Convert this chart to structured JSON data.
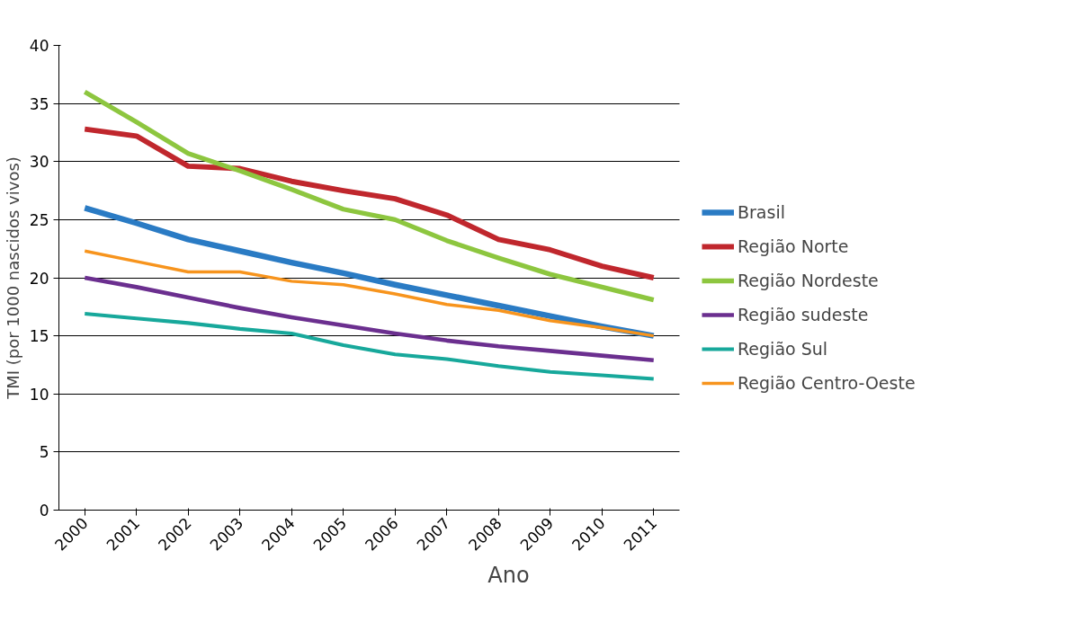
{
  "chart_data": {
    "type": "line",
    "xlabel": "Ano",
    "ylabel": "TMI (por 1000 nascidos vivos)",
    "categories": [
      "2000",
      "2001",
      "2002",
      "2003",
      "2004",
      "2005",
      "2006",
      "2007",
      "2008",
      "2009",
      "2010",
      "2011"
    ],
    "ylim": [
      0,
      40
    ],
    "yticks": [
      0,
      5,
      10,
      15,
      20,
      25,
      30,
      35,
      40
    ],
    "grid": "y",
    "legend": "right",
    "marker": "none",
    "line_style": "solid",
    "series": [
      {
        "name": "Brasil",
        "color": "#2a7bc4",
        "values": [
          26.0,
          24.7,
          23.3,
          22.3,
          21.3,
          20.4,
          19.4,
          18.5,
          17.6,
          16.7,
          15.8,
          15.0
        ]
      },
      {
        "name": "Região Norte",
        "color": "#c0272d",
        "values": [
          32.8,
          32.2,
          29.6,
          29.4,
          28.3,
          27.5,
          26.8,
          25.4,
          23.3,
          22.4,
          21.0,
          20.0
        ]
      },
      {
        "name": "Região Nordeste",
        "color": "#8dc63f",
        "values": [
          36.0,
          33.4,
          30.7,
          29.2,
          27.6,
          25.9,
          25.0,
          23.2,
          21.7,
          20.3,
          19.2,
          18.1
        ]
      },
      {
        "name": "Região sudeste",
        "color": "#6b2f8f",
        "values": [
          20.0,
          19.2,
          18.3,
          17.4,
          16.6,
          15.9,
          15.2,
          14.6,
          14.1,
          13.7,
          13.3,
          12.9
        ]
      },
      {
        "name": "Região Sul",
        "color": "#17a89b",
        "values": [
          16.9,
          16.5,
          16.1,
          15.6,
          15.2,
          14.2,
          13.4,
          13.0,
          12.4,
          11.9,
          11.6,
          11.3
        ]
      },
      {
        "name": "Região Centro-Oeste",
        "color": "#f7941d",
        "values": [
          22.3,
          21.4,
          20.5,
          20.5,
          19.7,
          19.4,
          18.6,
          17.7,
          17.2,
          16.3,
          15.7,
          15.0
        ]
      }
    ]
  }
}
